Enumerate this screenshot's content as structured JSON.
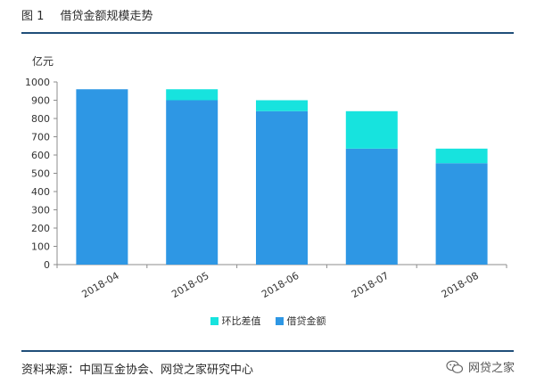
{
  "header": {
    "figure_number": "图 1",
    "title": "借贷金额规模走势"
  },
  "chart_data": {
    "type": "bar",
    "stacked": true,
    "unit_label": "亿元",
    "categories": [
      "2018-04",
      "2018-05",
      "2018-06",
      "2018-07",
      "2018-08"
    ],
    "series": [
      {
        "name": "借贷金额",
        "values": [
          960,
          900,
          840,
          635,
          555
        ],
        "color": "#2e97e4"
      },
      {
        "name": "环比差值",
        "values": [
          0,
          60,
          60,
          205,
          80
        ],
        "color": "#17e3de"
      }
    ],
    "ylim": [
      0,
      1000
    ],
    "yticks": [
      0,
      100,
      200,
      300,
      400,
      500,
      600,
      700,
      800,
      900,
      1000
    ],
    "grid": false,
    "legend_position": "bottom",
    "legend_order": [
      "环比差值",
      "借贷金额"
    ]
  },
  "footer": {
    "source": "资料来源：中国互金协会、网贷之家研究中心",
    "brand": "网贷之家"
  }
}
